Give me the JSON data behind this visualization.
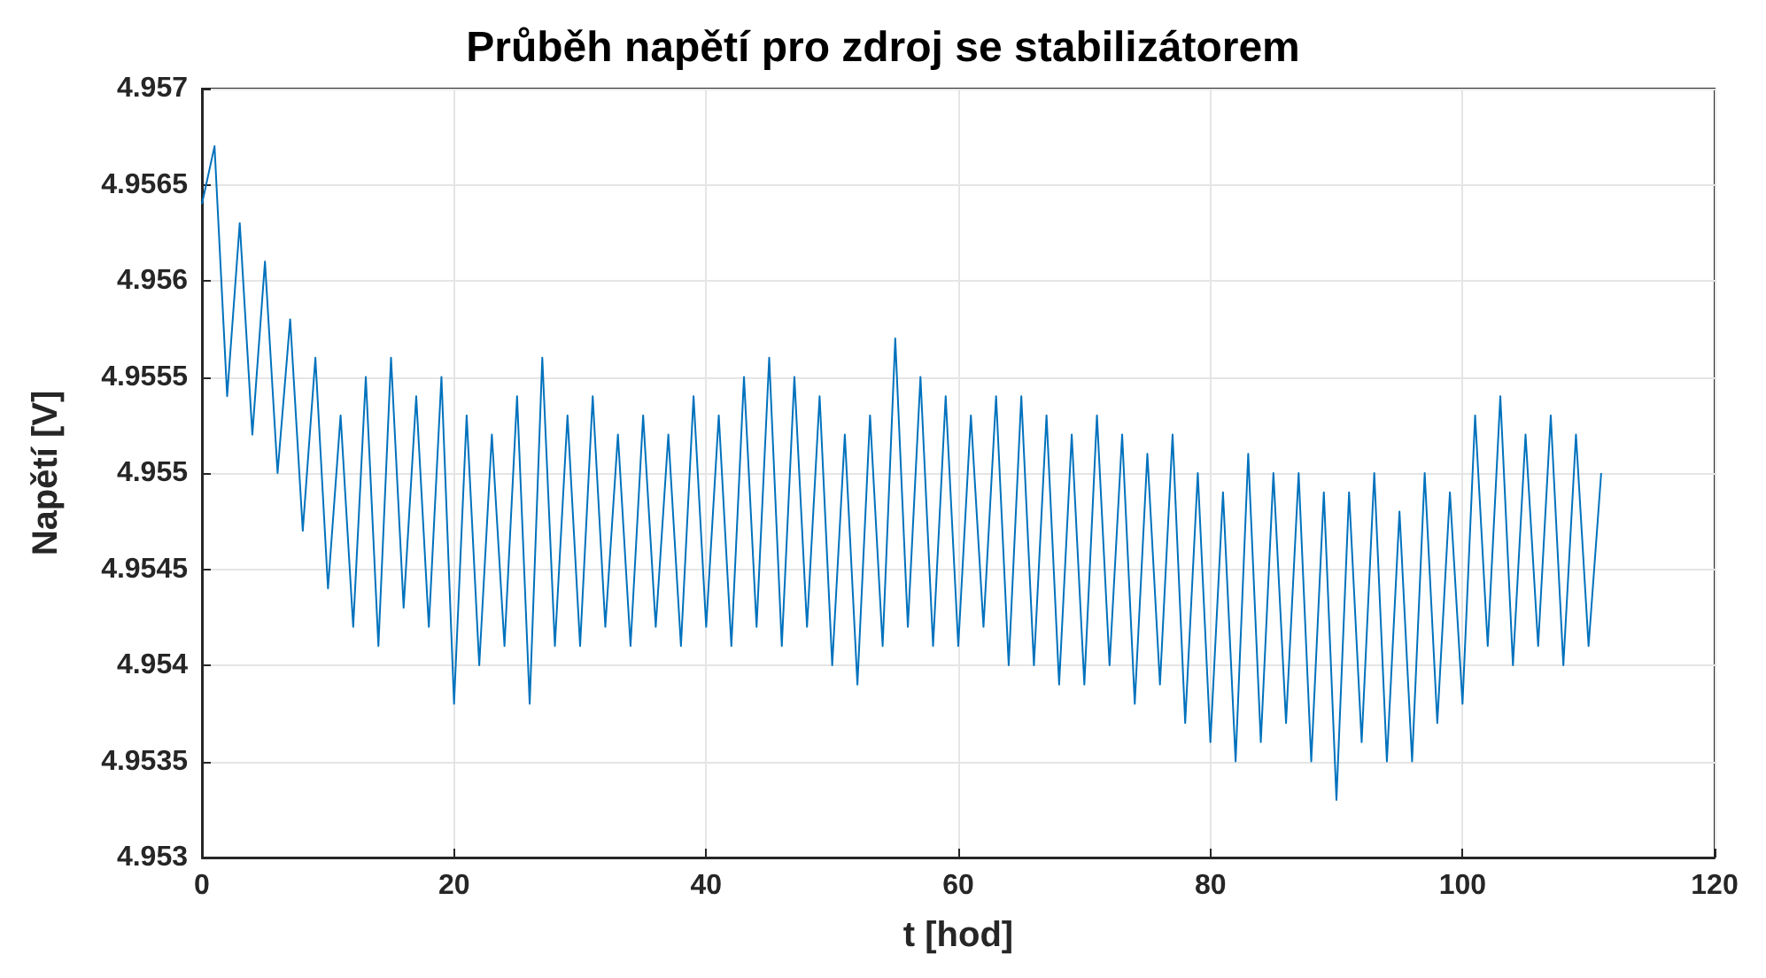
{
  "chart_data": {
    "type": "line",
    "title": "Průběh napětí pro zdroj se stabilizátorem",
    "xlabel": "t [hod]",
    "ylabel": "Napětí [V]",
    "x": [
      0,
      1,
      2,
      3,
      4,
      5,
      6,
      7,
      8,
      9,
      10,
      11,
      12,
      13,
      14,
      15,
      16,
      17,
      18,
      19,
      20,
      21,
      22,
      23,
      24,
      25,
      26,
      27,
      28,
      29,
      30,
      31,
      32,
      33,
      34,
      35,
      36,
      37,
      38,
      39,
      40,
      41,
      42,
      43,
      44,
      45,
      46,
      47,
      48,
      49,
      50,
      51,
      52,
      53,
      54,
      55,
      56,
      57,
      58,
      59,
      60,
      61,
      62,
      63,
      64,
      65,
      66,
      67,
      68,
      69,
      70,
      71,
      72,
      73,
      74,
      75,
      76,
      77,
      78,
      79,
      80,
      81,
      82,
      83,
      84,
      85,
      86,
      87,
      88,
      89,
      90,
      91,
      92,
      93,
      94,
      95,
      96,
      97,
      98,
      99,
      100,
      101,
      102,
      103,
      104,
      105,
      106,
      107,
      108,
      109,
      110,
      111
    ],
    "series": [
      {
        "color": "#0072bd",
        "values": [
          4.9564,
          4.9567,
          4.9554,
          4.9563,
          4.9552,
          4.9561,
          4.955,
          4.9558,
          4.9547,
          4.9556,
          4.9544,
          4.9553,
          4.9542,
          4.9555,
          4.9541,
          4.9556,
          4.9543,
          4.9554,
          4.9542,
          4.9555,
          4.9538,
          4.9553,
          4.954,
          4.9552,
          4.9541,
          4.9554,
          4.9538,
          4.9556,
          4.9541,
          4.9553,
          4.9541,
          4.9554,
          4.9542,
          4.9552,
          4.9541,
          4.9553,
          4.9542,
          4.9552,
          4.9541,
          4.9554,
          4.9542,
          4.9553,
          4.9541,
          4.9555,
          4.9542,
          4.9556,
          4.9541,
          4.9555,
          4.9542,
          4.9554,
          4.954,
          4.9552,
          4.9539,
          4.9553,
          4.9541,
          4.9557,
          4.9542,
          4.9555,
          4.9541,
          4.9554,
          4.9541,
          4.9553,
          4.9542,
          4.9554,
          4.954,
          4.9554,
          4.954,
          4.9553,
          4.9539,
          4.9552,
          4.9539,
          4.9553,
          4.954,
          4.9552,
          4.9538,
          4.9551,
          4.9539,
          4.9552,
          4.9537,
          4.955,
          4.9536,
          4.9549,
          4.9535,
          4.9551,
          4.9536,
          4.955,
          4.9537,
          4.955,
          4.9535,
          4.9549,
          4.9533,
          4.9549,
          4.9536,
          4.955,
          4.9535,
          4.9548,
          4.9535,
          4.955,
          4.9537,
          4.9549,
          4.9538,
          4.9553,
          4.9541,
          4.9554,
          4.954,
          4.9552,
          4.9541,
          4.9553,
          4.954,
          4.9552,
          4.9541,
          4.955
        ]
      }
    ],
    "xlim": [
      0,
      120
    ],
    "xticks": [
      0,
      20,
      40,
      60,
      80,
      100,
      120
    ],
    "ylim": [
      4.953,
      4.957
    ],
    "yticks": [
      4.953,
      4.9535,
      4.954,
      4.9545,
      4.955,
      4.9555,
      4.956,
      4.9565,
      4.957
    ],
    "grid": true,
    "line_style": "solid"
  }
}
